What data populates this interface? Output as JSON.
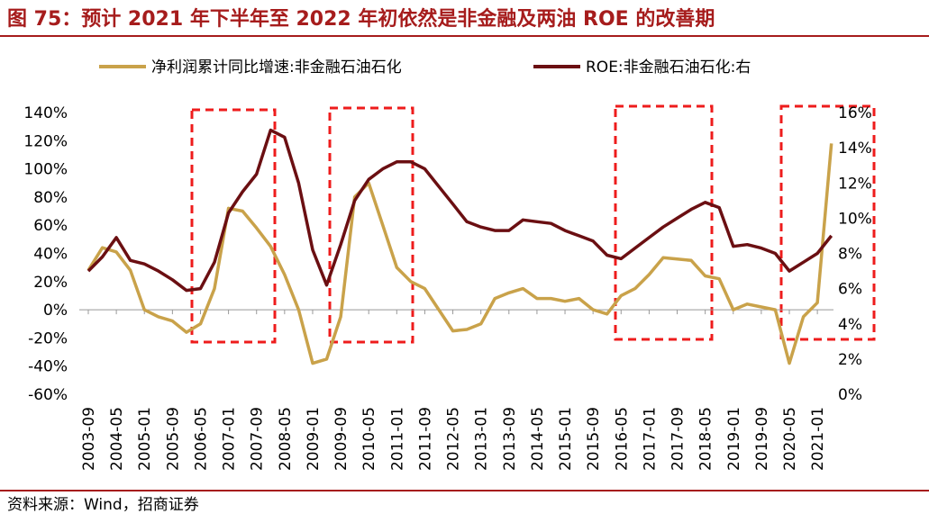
{
  "chart_data": {
    "type": "line",
    "title": "图 75：预计 2021 年下半年至 2022 年初依然是非金融及两油 ROE 的改善期",
    "source": "资料来源：Wind，招商证券",
    "categories": [
      "2003-09",
      null,
      "2004-05",
      null,
      "2005-01",
      null,
      "2005-09",
      null,
      "2006-05",
      null,
      "2007-01",
      null,
      "2007-09",
      null,
      "2008-05",
      null,
      "2009-01",
      null,
      "2009-09",
      null,
      "2010-05",
      null,
      "2011-01",
      null,
      "2011-09",
      null,
      "2012-05",
      null,
      "2013-01",
      null,
      "2013-09",
      null,
      "2014-05",
      null,
      "2015-01",
      null,
      "2015-09",
      null,
      "2016-05",
      null,
      "2017-01",
      null,
      "2017-09",
      null,
      "2018-05",
      null,
      "2019-01",
      null,
      "2019-09",
      null,
      "2020-05",
      null,
      "2021-01",
      null
    ],
    "series": [
      {
        "name": "净利润累计同比增速:非金融石油石化",
        "color": "#c9a24a",
        "values": [
          28,
          44,
          41,
          28,
          0,
          -5,
          -8,
          -16,
          -10,
          15,
          72,
          70,
          58,
          45,
          25,
          0,
          -38,
          -35,
          -5,
          80,
          90,
          60,
          30,
          20,
          15,
          0,
          -15,
          -14,
          -10,
          8,
          12,
          15,
          8,
          8,
          6,
          8,
          0,
          -3,
          10,
          15,
          25,
          37,
          36,
          35,
          24,
          22,
          0,
          4,
          2,
          0,
          -38,
          -5,
          5,
          118
        ]
      },
      {
        "name": "ROE:非金融石油石化:右",
        "color": "#6b0f12",
        "axis": "y2",
        "values": [
          7.0,
          7.8,
          8.9,
          7.6,
          7.4,
          7.0,
          6.5,
          5.9,
          6.0,
          7.5,
          10.3,
          11.5,
          12.5,
          15.0,
          14.6,
          12.0,
          8.2,
          6.2,
          8.5,
          11.0,
          12.2,
          12.8,
          13.2,
          13.2,
          12.8,
          11.8,
          10.8,
          9.8,
          9.5,
          9.3,
          9.3,
          9.9,
          9.8,
          9.7,
          9.3,
          9.0,
          8.7,
          7.9,
          7.7,
          8.3,
          8.9,
          9.5,
          10.0,
          10.5,
          10.9,
          10.6,
          8.4,
          8.5,
          8.3,
          8.0,
          7.0,
          7.5,
          8.0,
          9.0
        ]
      }
    ],
    "ylim": [
      -60,
      140
    ],
    "yticks": [
      {
        "value": -60,
        "label": "-60%"
      },
      {
        "value": -40,
        "label": "-40%"
      },
      {
        "value": -20,
        "label": "-20%"
      },
      {
        "value": 0,
        "label": "0%"
      },
      {
        "value": 20,
        "label": "20%"
      },
      {
        "value": 40,
        "label": "40%"
      },
      {
        "value": 60,
        "label": "60%"
      },
      {
        "value": 80,
        "label": "80%"
      },
      {
        "value": 100,
        "label": "100%"
      },
      {
        "value": 120,
        "label": "120%"
      },
      {
        "value": 140,
        "label": "140%"
      }
    ],
    "y2lim": [
      0,
      16
    ],
    "y2ticks": [
      {
        "value": 0,
        "label": "0%"
      },
      {
        "value": 2,
        "label": "2%"
      },
      {
        "value": 4,
        "label": "4%"
      },
      {
        "value": 6,
        "label": "6%"
      },
      {
        "value": 8,
        "label": "8%"
      },
      {
        "value": 10,
        "label": "10%"
      },
      {
        "value": 12,
        "label": "12%"
      },
      {
        "value": 14,
        "label": "14%"
      },
      {
        "value": 16,
        "label": "16%"
      }
    ],
    "legend": "top"
  }
}
